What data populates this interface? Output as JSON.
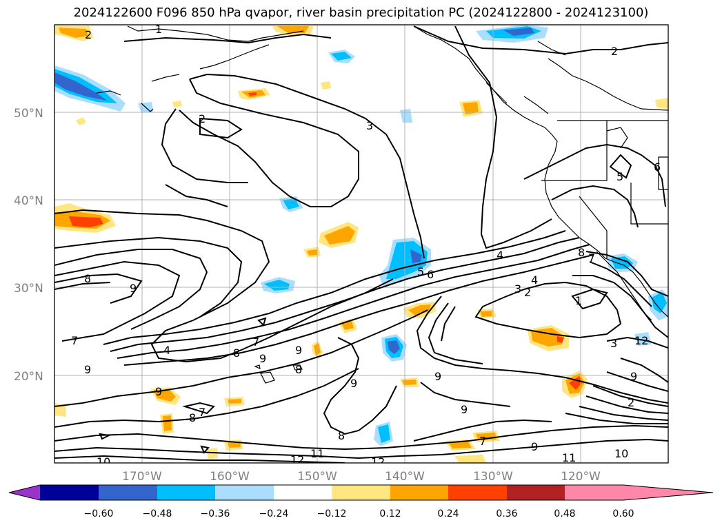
{
  "title": "2024122600 F096 850 hPa qvapor, river basin precipitation PC (2024122800 - 2024123100)",
  "map": {
    "lon_range": [
      -180,
      -110
    ],
    "lat_range": [
      10,
      60
    ],
    "lon_ticks": [
      "170°W",
      "160°W",
      "150°W",
      "140°W",
      "130°W",
      "120°W"
    ],
    "lat_ticks": [
      "50°N",
      "40°N",
      "30°N",
      "20°N"
    ],
    "gridlines": true,
    "contour_labels": [
      "1",
      "2",
      "2",
      "2",
      "3",
      "4",
      "5",
      "6",
      "4",
      "3",
      "2",
      "1",
      "2",
      "3",
      "8",
      "9",
      "7",
      "4",
      "8",
      "7",
      "9",
      "9",
      "8",
      "9",
      "9",
      "9",
      "9",
      "7",
      "8",
      "8",
      "9",
      "7",
      "9",
      "11",
      "10",
      "10",
      "12",
      "12",
      "11",
      "12",
      "6",
      "5",
      "7",
      "8",
      "9"
    ]
  },
  "colorbar": {
    "ticks": [
      "−0.60",
      "−0.48",
      "−0.36",
      "−0.24",
      "−0.12",
      "0.12",
      "0.24",
      "0.36",
      "0.48",
      "0.60"
    ],
    "colors": [
      "#9933cc",
      "#000099",
      "#3366cc",
      "#00bfff",
      "#aadeff",
      "#ffffff",
      "#ffe680",
      "#ffa500",
      "#ff4000",
      "#b22222",
      "#ff88aa"
    ]
  }
}
